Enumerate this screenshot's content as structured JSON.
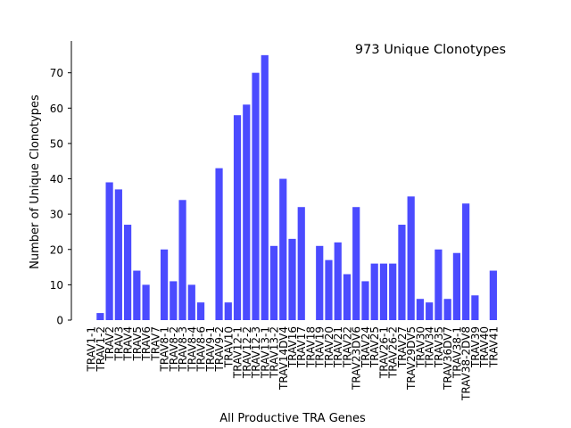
{
  "chart_data": {
    "type": "bar",
    "title": "",
    "annotation": "973 Unique Clonotypes",
    "xlabel": "All Productive TRA Genes",
    "ylabel": "Number of Unique Clonotypes",
    "ylim": [
      0,
      79
    ],
    "yticks": [
      0,
      10,
      20,
      30,
      40,
      50,
      60,
      70
    ],
    "bar_color": "#4b4bff",
    "grid": false,
    "categories": [
      "TRAV1-1",
      "TRAV1-2",
      "TRAV2",
      "TRAV3",
      "TRAV4",
      "TRAV5",
      "TRAV6",
      "TRAV7",
      "TRAV8-1",
      "TRAV8-2",
      "TRAV8-3",
      "TRAV8-4",
      "TRAV8-6",
      "TRAV9-1",
      "TRAV9-2",
      "TRAV10",
      "TRAV12-1",
      "TRAV12-2",
      "TRAV12-3",
      "TRAV13-1",
      "TRAV13-2",
      "TRAV14DV4",
      "TRAV16",
      "TRAV17",
      "TRAV18",
      "TRAV19",
      "TRAV20",
      "TRAV21",
      "TRAV22",
      "TRAV23DV6",
      "TRAV24",
      "TRAV25",
      "TRAV26-1",
      "TRAV26-2",
      "TRAV27",
      "TRAV29DV5",
      "TRAV30",
      "TRAV34",
      "TRAV35",
      "TRAV36DV7",
      "TRAV38-1",
      "TRAV38-2DV8",
      "TRAV39",
      "TRAV40",
      "TRAV41"
    ],
    "values": [
      0,
      2,
      39,
      37,
      27,
      14,
      10,
      0,
      20,
      11,
      34,
      10,
      5,
      0,
      43,
      5,
      58,
      61,
      70,
      75,
      21,
      40,
      23,
      32,
      0,
      21,
      17,
      22,
      13,
      32,
      11,
      16,
      16,
      16,
      27,
      35,
      6,
      5,
      20,
      6,
      19,
      33,
      7,
      0,
      14
    ]
  }
}
